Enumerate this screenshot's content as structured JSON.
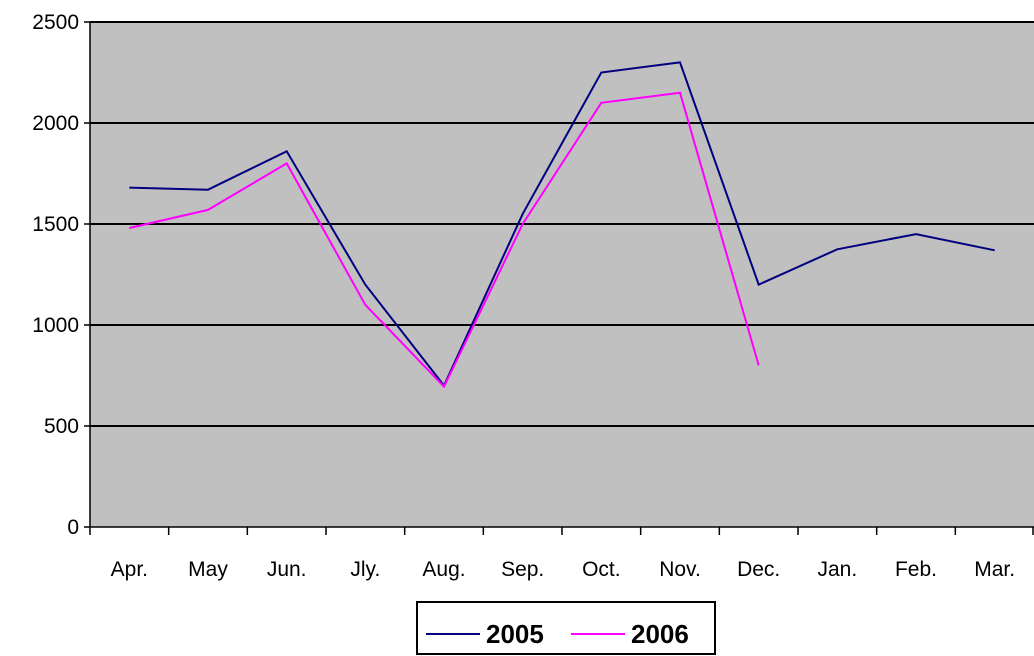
{
  "chart_data": {
    "type": "line",
    "categories": [
      "Apr.",
      "May",
      "Jun.",
      "Jly.",
      "Aug.",
      "Sep.",
      "Oct.",
      "Nov.",
      "Dec.",
      "Jan.",
      "Feb.",
      "Mar."
    ],
    "series": [
      {
        "name": "2005",
        "color": "#000080",
        "values": [
          1680,
          1670,
          1860,
          1200,
          700,
          1550,
          2250,
          2300,
          1200,
          1375,
          1450,
          1370
        ]
      },
      {
        "name": "2006",
        "color": "#ff00ff",
        "values": [
          1480,
          1570,
          1800,
          1100,
          695,
          1500,
          2100,
          2150,
          800,
          null,
          null,
          null
        ]
      }
    ],
    "title": "",
    "xlabel": "",
    "ylabel": "",
    "ylim": [
      0,
      2500
    ],
    "yticks": [
      0,
      500,
      1000,
      1500,
      2000,
      2500
    ],
    "grid": true,
    "plot_background": "#c0c0c0",
    "legend_position": "bottom"
  }
}
